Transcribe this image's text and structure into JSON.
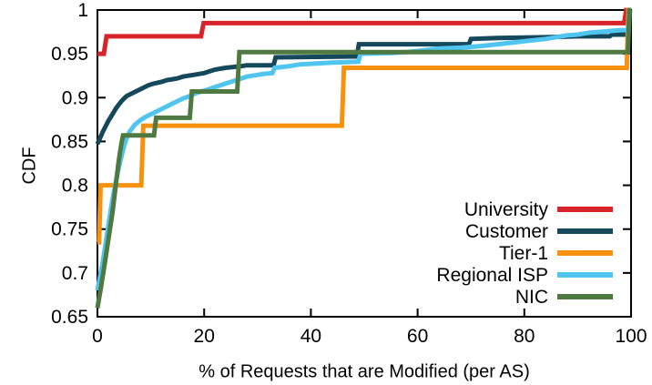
{
  "chart_data": {
    "type": "line",
    "subtype": "cdf",
    "title": "",
    "xlabel": "% of Requests that are Modified (per AS)",
    "ylabel": "CDF",
    "xlim": [
      0,
      100
    ],
    "ylim": [
      0.65,
      1.0
    ],
    "xticks": [
      0,
      20,
      40,
      60,
      80,
      100
    ],
    "yticks": [
      0.65,
      0.7,
      0.75,
      0.8,
      0.85,
      0.9,
      0.95,
      1
    ],
    "grid": false,
    "legend_position": "inside-bottom-right",
    "background_color": "#ffffff",
    "axis_color": "#000000",
    "series": [
      {
        "name": "University",
        "color": "#d8232a",
        "points": [
          [
            0,
            0.95
          ],
          [
            1.2,
            0.95
          ],
          [
            1.7,
            0.97
          ],
          [
            19.4,
            0.97
          ],
          [
            19.9,
            0.985
          ],
          [
            98.7,
            0.985
          ],
          [
            99.1,
            1
          ],
          [
            100,
            1
          ]
        ]
      },
      {
        "name": "Customer",
        "color": "#16485c",
        "points": [
          [
            0,
            0.847
          ],
          [
            0.5,
            0.854
          ],
          [
            1,
            0.861
          ],
          [
            1.5,
            0.867
          ],
          [
            2,
            0.873
          ],
          [
            2.5,
            0.878
          ],
          [
            3,
            0.883
          ],
          [
            3.5,
            0.888
          ],
          [
            4,
            0.892
          ],
          [
            4.5,
            0.896
          ],
          [
            5,
            0.899
          ],
          [
            5.5,
            0.902
          ],
          [
            6.5,
            0.905
          ],
          [
            7.5,
            0.908
          ],
          [
            8.5,
            0.911
          ],
          [
            9.5,
            0.914
          ],
          [
            10.5,
            0.916
          ],
          [
            12,
            0.918
          ],
          [
            13,
            0.92
          ],
          [
            14,
            0.921
          ],
          [
            15,
            0.922
          ],
          [
            16,
            0.924
          ],
          [
            17,
            0.925
          ],
          [
            18,
            0.926
          ],
          [
            19,
            0.927
          ],
          [
            20,
            0.928
          ],
          [
            21,
            0.93
          ],
          [
            22,
            0.932
          ],
          [
            23,
            0.933
          ],
          [
            24,
            0.934
          ],
          [
            25.5,
            0.935
          ],
          [
            27,
            0.936
          ],
          [
            28,
            0.937
          ],
          [
            33,
            0.937
          ],
          [
            33.4,
            0.946
          ],
          [
            48.6,
            0.947
          ],
          [
            49,
            0.961
          ],
          [
            69.6,
            0.961
          ],
          [
            70,
            0.967
          ],
          [
            75,
            0.968
          ],
          [
            85,
            0.969
          ],
          [
            90,
            0.97
          ],
          [
            96,
            0.97
          ],
          [
            96.4,
            0.972
          ],
          [
            99.5,
            0.972
          ],
          [
            99.8,
            1
          ],
          [
            100,
            1
          ]
        ]
      },
      {
        "name": "Tier-1",
        "color": "#f7920e",
        "points": [
          [
            0,
            0.735
          ],
          [
            0.3,
            0.735
          ],
          [
            0.6,
            0.8
          ],
          [
            8.2,
            0.8
          ],
          [
            8.6,
            0.868
          ],
          [
            45.8,
            0.868
          ],
          [
            46.2,
            0.934
          ],
          [
            99.2,
            0.934
          ],
          [
            99.5,
            1
          ],
          [
            100,
            1
          ]
        ]
      },
      {
        "name": "Regional ISP",
        "color": "#4fc5f0",
        "points": [
          [
            0,
            0.68
          ],
          [
            0.5,
            0.696
          ],
          [
            1,
            0.713
          ],
          [
            1.5,
            0.732
          ],
          [
            2,
            0.752
          ],
          [
            2.5,
            0.772
          ],
          [
            3,
            0.79
          ],
          [
            3.5,
            0.806
          ],
          [
            4,
            0.82
          ],
          [
            4.5,
            0.833
          ],
          [
            5,
            0.845
          ],
          [
            5.5,
            0.854
          ],
          [
            6,
            0.861
          ],
          [
            7,
            0.869
          ],
          [
            8,
            0.874
          ],
          [
            9,
            0.878
          ],
          [
            10,
            0.881
          ],
          [
            11,
            0.884
          ],
          [
            12,
            0.887
          ],
          [
            13,
            0.89
          ],
          [
            14,
            0.893
          ],
          [
            15,
            0.896
          ],
          [
            16,
            0.899
          ],
          [
            17,
            0.901
          ],
          [
            18,
            0.904
          ],
          [
            19,
            0.906
          ],
          [
            20,
            0.908
          ],
          [
            21,
            0.91
          ],
          [
            22,
            0.912
          ],
          [
            23,
            0.914
          ],
          [
            24,
            0.916
          ],
          [
            25,
            0.918
          ],
          [
            26,
            0.92
          ],
          [
            27,
            0.922
          ],
          [
            28,
            0.924
          ],
          [
            29,
            0.925
          ],
          [
            30,
            0.926
          ],
          [
            31,
            0.927
          ],
          [
            32.8,
            0.928
          ],
          [
            33.2,
            0.934
          ],
          [
            36,
            0.936
          ],
          [
            38,
            0.938
          ],
          [
            41,
            0.939
          ],
          [
            44,
            0.94
          ],
          [
            48.9,
            0.941
          ],
          [
            49.3,
            0.95
          ],
          [
            55,
            0.951
          ],
          [
            58,
            0.952
          ],
          [
            61,
            0.954
          ],
          [
            64,
            0.956
          ],
          [
            68,
            0.957
          ],
          [
            72,
            0.959
          ],
          [
            75,
            0.961
          ],
          [
            78,
            0.963
          ],
          [
            81,
            0.965
          ],
          [
            84,
            0.967
          ],
          [
            86,
            0.969
          ],
          [
            88,
            0.971
          ],
          [
            90,
            0.972
          ],
          [
            92,
            0.974
          ],
          [
            94,
            0.975
          ],
          [
            96,
            0.976
          ],
          [
            98,
            0.977
          ],
          [
            99.4,
            0.977
          ],
          [
            99.7,
            1
          ],
          [
            100,
            1
          ]
        ]
      },
      {
        "name": "NIC",
        "color": "#4e7a41",
        "points": [
          [
            0,
            0.66
          ],
          [
            0.7,
            0.685
          ],
          [
            1.4,
            0.712
          ],
          [
            2.1,
            0.74
          ],
          [
            2.8,
            0.768
          ],
          [
            3.4,
            0.798
          ],
          [
            4,
            0.828
          ],
          [
            4.5,
            0.848
          ],
          [
            4.8,
            0.857
          ],
          [
            10.6,
            0.857
          ],
          [
            11,
            0.877
          ],
          [
            17.3,
            0.877
          ],
          [
            17.7,
            0.907
          ],
          [
            26.2,
            0.907
          ],
          [
            26.6,
            0.952
          ],
          [
            99.4,
            0.952
          ],
          [
            99.7,
            1
          ],
          [
            100,
            1
          ]
        ]
      }
    ]
  }
}
